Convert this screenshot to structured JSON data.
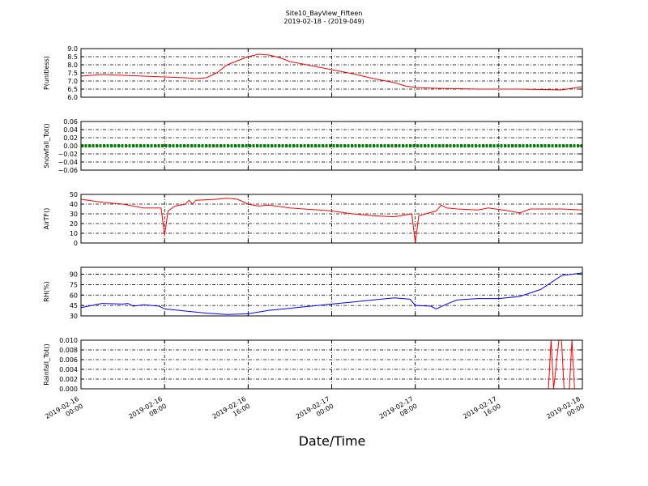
{
  "title": "Site10_BayView_Fifteen",
  "subtitle": "2019-02-18 - (2019-049)",
  "xlabel": "Date/Time",
  "colors": {
    "red": "#ff0000",
    "green": "#008000",
    "blue": "#0000ff"
  },
  "chart_data": {
    "type": "line",
    "x_range": [
      "2019-02-16 00:00",
      "2019-02-18 00:00"
    ],
    "x_ticks": [
      {
        "x": "2019-02-16 00:00",
        "label": "2019-02-16\n00:00"
      },
      {
        "x": "2019-02-16 08:00",
        "label": "2019-02-16\n08:00"
      },
      {
        "x": "2019-02-16 16:00",
        "label": "2019-02-16\n16:00"
      },
      {
        "x": "2019-02-17 00:00",
        "label": "2019-02-17\n00:00"
      },
      {
        "x": "2019-02-17 08:00",
        "label": "2019-02-17\n08:00"
      },
      {
        "x": "2019-02-17 16:00",
        "label": "2019-02-17\n16:00"
      },
      {
        "x": "2019-02-18 00:00",
        "label": "2019-02-18\n00:00"
      }
    ],
    "grid": true,
    "panels": [
      {
        "ylabel": "P(unitless)",
        "ylim": [
          6.0,
          9.0
        ],
        "yticks": [
          "6.0",
          "6.5",
          "7.0",
          "7.5",
          "8.0",
          "8.5",
          "9.0"
        ],
        "color": "#ff0000",
        "marker": "line",
        "series": [
          {
            "x": [
              "2019-02-16 00:00",
              "2019-02-16 02:00",
              "2019-02-16 04:00",
              "2019-02-16 06:00",
              "2019-02-16 08:00",
              "2019-02-16 10:00",
              "2019-02-16 11:00",
              "2019-02-16 12:00",
              "2019-02-16 12:30",
              "2019-02-16 13:00",
              "2019-02-16 14:00",
              "2019-02-16 15:00",
              "2019-02-16 16:00",
              "2019-02-16 17:00",
              "2019-02-16 18:00",
              "2019-02-16 19:00",
              "2019-02-16 20:00",
              "2019-02-16 22:00",
              "2019-02-17 00:00",
              "2019-02-17 02:00",
              "2019-02-17 04:00",
              "2019-02-17 06:00",
              "2019-02-17 07:00",
              "2019-02-17 08:00",
              "2019-02-17 10:00",
              "2019-02-17 14:00",
              "2019-02-17 18:00",
              "2019-02-17 22:00",
              "2019-02-17 23:00",
              "2019-02-18 00:00"
            ],
            "y": [
              7.3,
              7.4,
              7.35,
              7.3,
              7.25,
              7.2,
              7.15,
              7.2,
              7.35,
              7.5,
              8.0,
              8.25,
              8.5,
              8.65,
              8.6,
              8.45,
              8.2,
              7.95,
              7.7,
              7.45,
              7.15,
              6.9,
              6.7,
              6.6,
              6.55,
              6.5,
              6.5,
              6.45,
              6.55,
              6.65
            ]
          }
        ]
      },
      {
        "ylabel": "Snowfall_Tot()",
        "ylim": [
          -0.06,
          0.06
        ],
        "yticks": [
          "−0.06",
          "−0.04",
          "−0.02",
          "0.00",
          "0.02",
          "0.04",
          "0.06"
        ],
        "color": "#008000",
        "marker": "dotted-thick",
        "series": [
          {
            "x": [
              "2019-02-16 00:00",
              "2019-02-18 00:00"
            ],
            "y": [
              0.0,
              0.0
            ]
          }
        ]
      },
      {
        "ylabel": "AirTF()",
        "ylim": [
          0,
          50
        ],
        "yticks": [
          "0",
          "10",
          "20",
          "30",
          "40",
          "50"
        ],
        "color": "#ff0000",
        "marker": "line",
        "series": [
          {
            "x": [
              "2019-02-16 00:00",
              "2019-02-16 02:00",
              "2019-02-16 04:00",
              "2019-02-16 06:00",
              "2019-02-16 07:40",
              "2019-02-16 08:00",
              "2019-02-16 08:20",
              "2019-02-16 09:00",
              "2019-02-16 10:00",
              "2019-02-16 10:20",
              "2019-02-16 10:40",
              "2019-02-16 11:00",
              "2019-02-16 13:00",
              "2019-02-16 14:00",
              "2019-02-16 15:00",
              "2019-02-16 16:00",
              "2019-02-16 17:00",
              "2019-02-16 18:00",
              "2019-02-16 20:00",
              "2019-02-17 00:00",
              "2019-02-17 02:00",
              "2019-02-17 04:00",
              "2019-02-17 06:00",
              "2019-02-17 07:40",
              "2019-02-17 08:00",
              "2019-02-17 08:20",
              "2019-02-17 09:00",
              "2019-02-17 10:00",
              "2019-02-17 10:30",
              "2019-02-17 11:00",
              "2019-02-17 12:00",
              "2019-02-17 14:00",
              "2019-02-17 15:00",
              "2019-02-17 17:00",
              "2019-02-17 18:00",
              "2019-02-17 19:00",
              "2019-02-17 22:00",
              "2019-02-18 00:00"
            ],
            "y": [
              45,
              42,
              40,
              36,
              36,
              8,
              33,
              38,
              40,
              44,
              40,
              44,
              45,
              46,
              45,
              40,
              38,
              39,
              36,
              33,
              30,
              28,
              27,
              30,
              0,
              28,
              30,
              33,
              39,
              36,
              35,
              34,
              36,
              33,
              31,
              35,
              35,
              34
            ]
          }
        ]
      },
      {
        "ylabel": "RH(%)",
        "ylim": [
          30,
          100
        ],
        "yticks": [
          "30",
          "45",
          "60",
          "75",
          "90"
        ],
        "color": "#0000ff",
        "marker": "line",
        "series": [
          {
            "x": [
              "2019-02-16 00:00",
              "2019-02-16 02:00",
              "2019-02-16 04:00",
              "2019-02-16 04:30",
              "2019-02-16 05:00",
              "2019-02-16 06:00",
              "2019-02-16 07:30",
              "2019-02-16 08:00",
              "2019-02-16 10:00",
              "2019-02-16 12:00",
              "2019-02-16 14:00",
              "2019-02-16 16:00",
              "2019-02-16 18:00",
              "2019-02-16 20:00",
              "2019-02-16 22:00",
              "2019-02-17 00:00",
              "2019-02-17 02:00",
              "2019-02-17 04:00",
              "2019-02-17 06:00",
              "2019-02-17 07:30",
              "2019-02-17 08:00",
              "2019-02-17 09:30",
              "2019-02-17 10:00",
              "2019-02-17 11:00",
              "2019-02-17 12:00",
              "2019-02-17 14:00",
              "2019-02-17 16:00",
              "2019-02-17 18:00",
              "2019-02-17 20:00",
              "2019-02-17 22:00",
              "2019-02-18 00:00"
            ],
            "y": [
              42,
              48,
              47,
              48,
              44,
              46,
              44,
              40,
              37,
              34,
              32,
              33,
              38,
              41,
              44,
              47,
              50,
              53,
              56,
              54,
              45,
              44,
              40,
              47,
              53,
              55,
              55,
              58,
              68,
              88,
              92
            ]
          }
        ]
      },
      {
        "ylabel": "Rainfall_Tot()",
        "ylim": [
          0.0,
          0.01
        ],
        "yticks": [
          "0.000",
          "0.002",
          "0.004",
          "0.006",
          "0.008",
          "0.010"
        ],
        "color": "#ff0000",
        "marker": "line",
        "series": [
          {
            "x": [
              "2019-02-16 00:00",
              "2019-02-17 20:45",
              "2019-02-17 21:00",
              "2019-02-17 21:15",
              "2019-02-17 21:45",
              "2019-02-17 22:00",
              "2019-02-17 22:15",
              "2019-02-17 22:45",
              "2019-02-17 23:00",
              "2019-02-17 23:15",
              "2019-02-18 00:00"
            ],
            "y": [
              0,
              0,
              0.01,
              0,
              0.01,
              0.01,
              0,
              0,
              0.01,
              0,
              0
            ]
          }
        ]
      }
    ]
  }
}
